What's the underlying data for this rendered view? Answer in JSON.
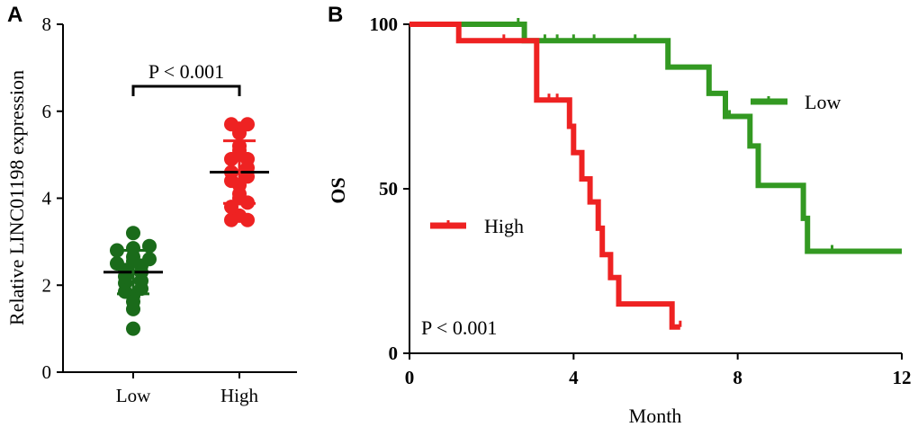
{
  "chart_data": [
    {
      "panel": "A",
      "type": "scatter",
      "title": "",
      "xlabel": "",
      "ylabel": "Relative LINC01198  expression",
      "categories": [
        "Low",
        "High"
      ],
      "ylim": [
        0,
        8
      ],
      "yticks": [
        0,
        2,
        4,
        6,
        8
      ],
      "annotation": "P < 0.001",
      "colors": {
        "Low": "#1a6b1a",
        "High": "#ee2222"
      },
      "series": [
        {
          "name": "Low",
          "mean": 2.3,
          "sd": 0.5,
          "points": [
            1.0,
            1.45,
            1.62,
            1.75,
            1.85,
            1.92,
            2.05,
            2.1,
            2.2,
            2.3,
            2.35,
            2.45,
            2.5,
            2.55,
            2.6,
            2.65,
            2.8,
            2.85,
            2.9,
            3.2
          ]
        },
        {
          "name": "High",
          "mean": 4.6,
          "sd": 0.72,
          "points": [
            3.5,
            3.5,
            3.6,
            3.8,
            3.9,
            4.0,
            4.1,
            4.3,
            4.4,
            4.5,
            4.6,
            4.7,
            4.9,
            4.9,
            5.1,
            5.2,
            5.5,
            5.6,
            5.7,
            5.7
          ]
        }
      ]
    },
    {
      "panel": "B",
      "type": "line",
      "title": "",
      "xlabel": "Month",
      "ylabel": "OS",
      "xlim": [
        0,
        12
      ],
      "ylim": [
        0,
        100
      ],
      "xticks": [
        0,
        4,
        8,
        12
      ],
      "yticks": [
        0,
        50,
        100
      ],
      "annotation": "P < 0.001",
      "series": [
        {
          "name": "Low",
          "color": "#339922",
          "steps": [
            [
              0,
              100
            ],
            [
              2.8,
              100
            ],
            [
              2.8,
              95
            ],
            [
              6.3,
              95
            ],
            [
              6.3,
              87
            ],
            [
              7.3,
              87
            ],
            [
              7.3,
              79
            ],
            [
              7.7,
              79
            ],
            [
              7.7,
              72
            ],
            [
              8.3,
              72
            ],
            [
              8.3,
              63
            ],
            [
              8.5,
              63
            ],
            [
              8.5,
              51
            ],
            [
              9.6,
              51
            ],
            [
              9.6,
              41
            ],
            [
              9.7,
              41
            ],
            [
              9.7,
              31
            ],
            [
              12,
              31
            ]
          ],
          "censored": [
            [
              2.65,
              100
            ],
            [
              3.3,
              95
            ],
            [
              3.6,
              95
            ],
            [
              4.0,
              95
            ],
            [
              4.5,
              95
            ],
            [
              5.5,
              95
            ],
            [
              7.8,
              72
            ],
            [
              10.3,
              31
            ]
          ]
        },
        {
          "name": "High",
          "color": "#ee2222",
          "steps": [
            [
              0,
              100
            ],
            [
              1.2,
              100
            ],
            [
              1.2,
              95
            ],
            [
              3.1,
              95
            ],
            [
              3.1,
              77
            ],
            [
              3.9,
              77
            ],
            [
              3.9,
              69
            ],
            [
              4.0,
              69
            ],
            [
              4.0,
              61
            ],
            [
              4.2,
              61
            ],
            [
              4.2,
              53
            ],
            [
              4.4,
              53
            ],
            [
              4.4,
              46
            ],
            [
              4.6,
              46
            ],
            [
              4.6,
              38
            ],
            [
              4.7,
              38
            ],
            [
              4.7,
              30
            ],
            [
              4.9,
              30
            ],
            [
              4.9,
              23
            ],
            [
              5.1,
              23
            ],
            [
              5.1,
              15
            ],
            [
              6.4,
              15
            ],
            [
              6.4,
              8
            ],
            [
              6.6,
              8
            ]
          ],
          "censored": [
            [
              2.3,
              95
            ],
            [
              3.4,
              77
            ],
            [
              3.6,
              77
            ],
            [
              6.6,
              8
            ]
          ]
        }
      ]
    }
  ]
}
